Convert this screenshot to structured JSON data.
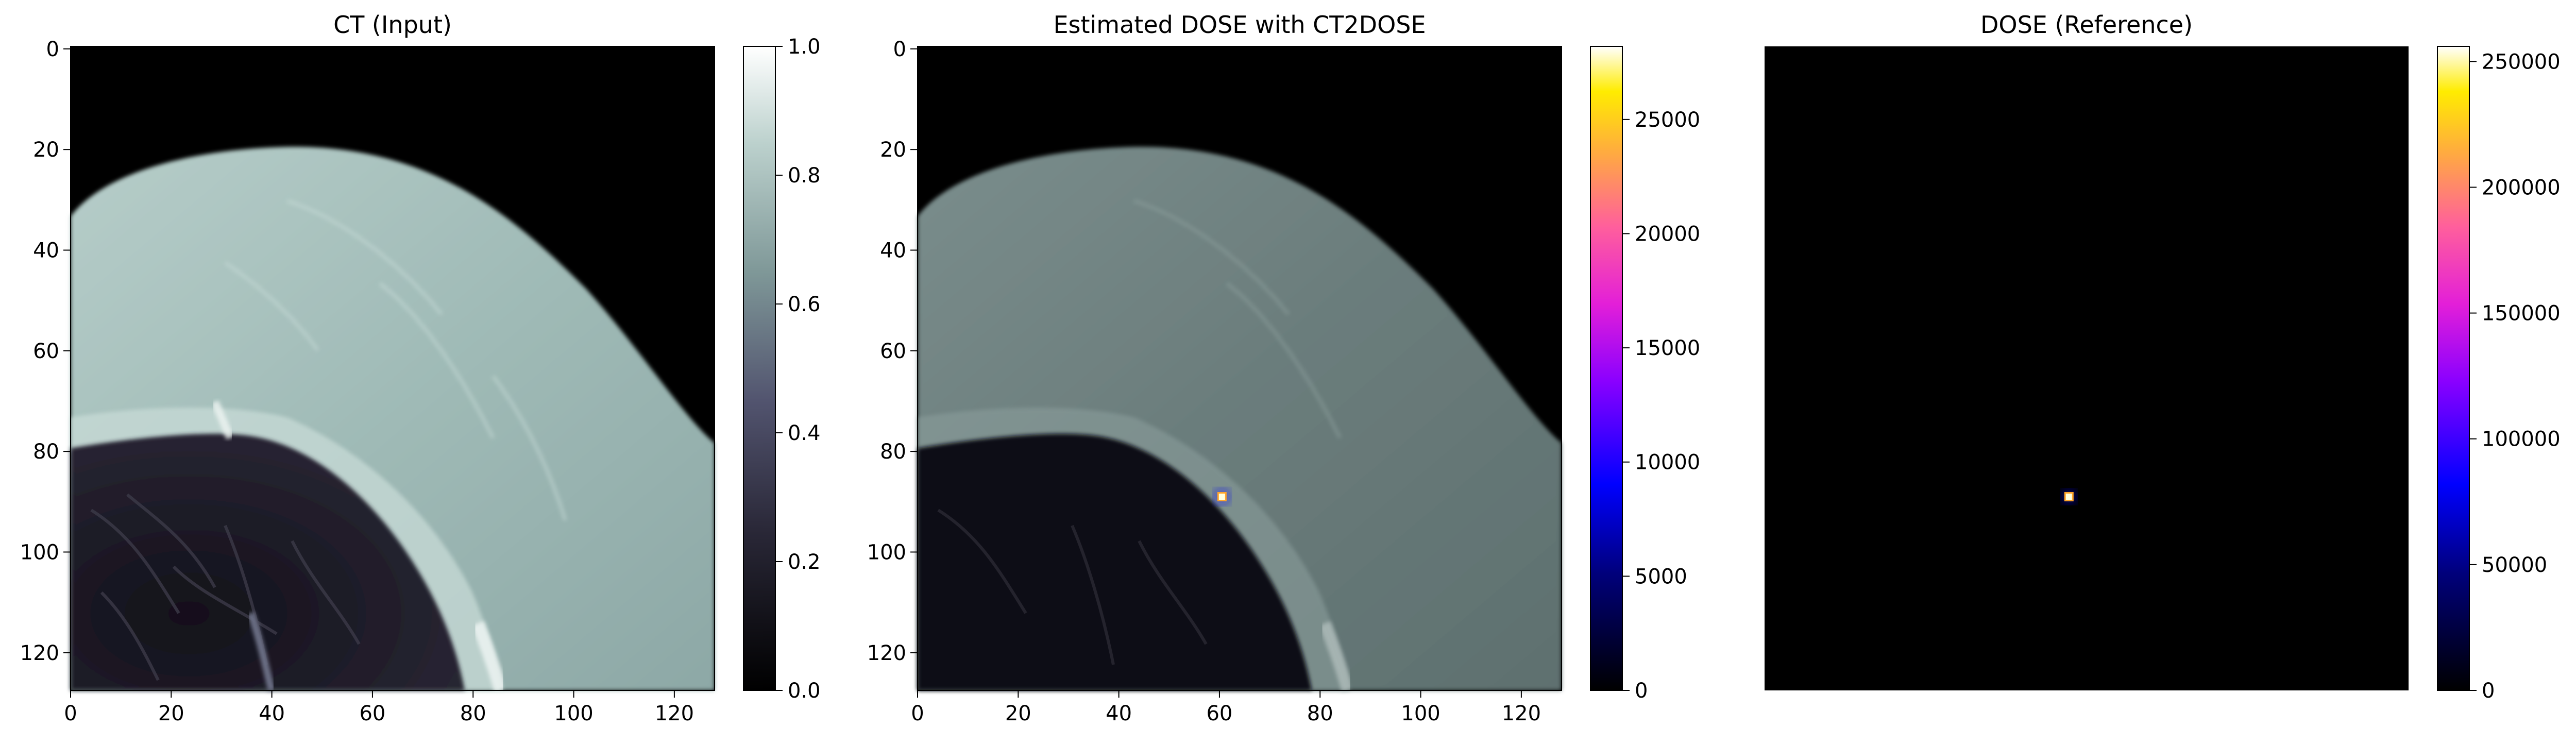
{
  "panels": [
    {
      "title": "CT (Input)",
      "x_ticks": [
        "0",
        "20",
        "40",
        "60",
        "80",
        "100",
        "120"
      ],
      "y_ticks": [
        "0",
        "20",
        "40",
        "60",
        "80",
        "100",
        "120"
      ],
      "colorbar_ticks": [
        "0.0",
        "0.2",
        "0.4",
        "0.6",
        "0.8",
        "1.0"
      ],
      "colormap": "bone"
    },
    {
      "title": "Estimated DOSE with CT2DOSE",
      "x_ticks": [
        "0",
        "20",
        "40",
        "60",
        "80",
        "100",
        "120"
      ],
      "y_ticks": [
        "0",
        "20",
        "40",
        "60",
        "80",
        "100",
        "120"
      ],
      "colorbar_ticks": [
        "0",
        "5000",
        "10000",
        "15000",
        "20000",
        "25000"
      ],
      "colormap": "gnuplot2",
      "hotspot": {
        "x": 60,
        "y": 89
      }
    },
    {
      "title": "DOSE (Reference)",
      "colorbar_ticks": [
        "0",
        "50000",
        "100000",
        "150000",
        "200000",
        "250000"
      ],
      "colormap": "gnuplot2",
      "hotspot": {
        "x": 60,
        "y": 89
      }
    }
  ],
  "colors": {
    "bone_tissue": "#9ab4b1",
    "bone_bright": "#c9dcd8",
    "lung_dark": "#1a1824",
    "overlay_tissue": "#6a7b7b",
    "hotspot_blue": "#1010ff",
    "hotspot_core": "#ffffe0"
  }
}
